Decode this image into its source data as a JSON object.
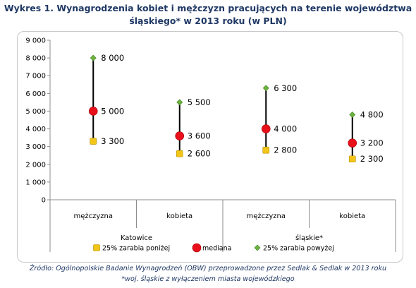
{
  "title": {
    "line1": "Wykres 1. Wynagrodzenia kobiet i mężczyzn pracujących na terenie województwa",
    "line2": "śląskiego* w 2013 roku (w PLN)"
  },
  "chart_data": {
    "type": "scatter",
    "title": "",
    "ylim": [
      0,
      9000
    ],
    "y_ticks": [
      0,
      1000,
      2000,
      3000,
      4000,
      5000,
      6000,
      7000,
      8000,
      9000
    ],
    "y_tick_labels": [
      "0",
      "1 000",
      "2 000",
      "3 000",
      "4 000",
      "5 000",
      "6 000",
      "7 000",
      "8 000",
      "9 000"
    ],
    "categories": [
      "mężczyzna",
      "kobieta",
      "mężczyzna",
      "kobieta"
    ],
    "groups": [
      {
        "label": "Katowice",
        "span": [
          0,
          1
        ]
      },
      {
        "label": "śląskie*",
        "span": [
          2,
          3
        ]
      }
    ],
    "series": [
      {
        "name": "25% zarabia poniżej",
        "values": [
          3300,
          2600,
          2800,
          2300
        ],
        "labels": [
          "3 300",
          "2 600",
          "2 800",
          "2 300"
        ]
      },
      {
        "name": "mediana",
        "values": [
          5000,
          3600,
          4000,
          3200
        ],
        "labels": [
          "5 000",
          "3 600",
          "4 000",
          "3 200"
        ]
      },
      {
        "name": "25% zarabia powyżej",
        "values": [
          8000,
          5500,
          6300,
          4800
        ],
        "labels": [
          "8 000",
          "5 500",
          "6 300",
          "4 800"
        ]
      }
    ],
    "legend_position": "bottom",
    "grid": false
  },
  "colors": {
    "title": "#1f3864",
    "low_marker": "#f2c618",
    "median_marker": "#e8101a",
    "high_marker": "#6cb33f",
    "range_line": "#000000",
    "axis": "#8c8c8c"
  },
  "footer": {
    "source": "Źródło: Ogólnopolskie Badanie Wynagrodzeń (OBW) przeprowadzone przez Sedlak & Sedlak w 2013 roku",
    "note": "*woj. śląskie z wyłączeniem miasta wojewódzkiego"
  }
}
